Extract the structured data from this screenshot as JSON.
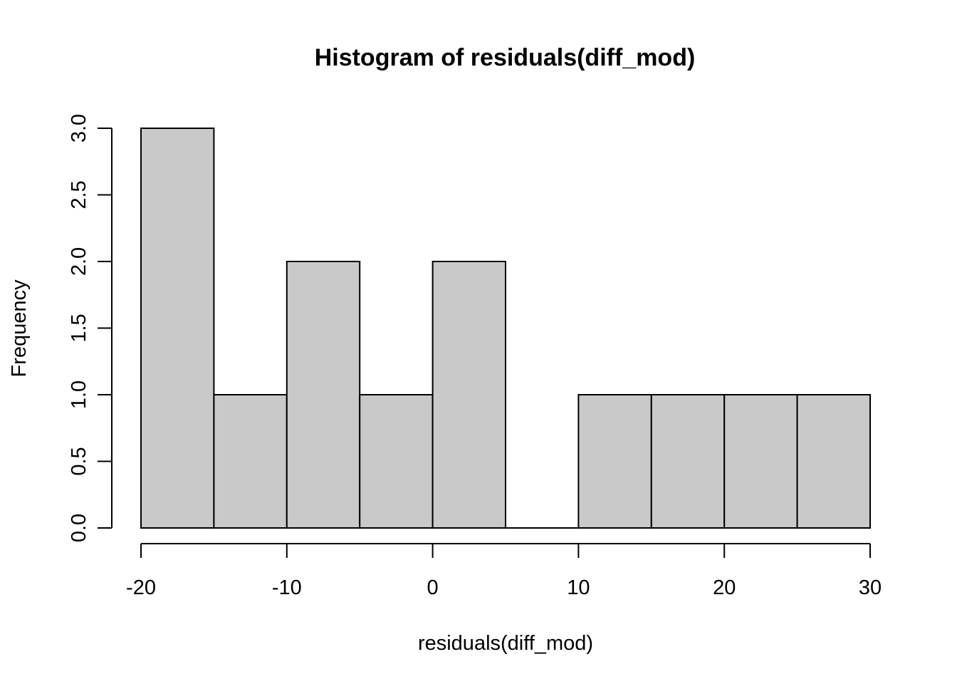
{
  "chart_data": {
    "type": "bar",
    "subtype": "histogram",
    "title": "Histogram of residuals(diff_mod)",
    "xlabel": "residuals(diff_mod)",
    "ylabel": "Frequency",
    "bins": [
      {
        "from": -20,
        "to": -15,
        "count": 3
      },
      {
        "from": -15,
        "to": -10,
        "count": 1
      },
      {
        "from": -10,
        "to": -5,
        "count": 2
      },
      {
        "from": -5,
        "to": 0,
        "count": 1
      },
      {
        "from": 0,
        "to": 5,
        "count": 2
      },
      {
        "from": 5,
        "to": 10,
        "count": 0
      },
      {
        "from": 10,
        "to": 15,
        "count": 1
      },
      {
        "from": 15,
        "to": 20,
        "count": 1
      },
      {
        "from": 20,
        "to": 25,
        "count": 1
      },
      {
        "from": 25,
        "to": 30,
        "count": 1
      }
    ],
    "xlim": [
      -20,
      30
    ],
    "ylim": [
      0,
      3
    ],
    "x_ticks": [
      "-20",
      "-10",
      "0",
      "10",
      "20",
      "30"
    ],
    "y_ticks": [
      "0.0",
      "0.5",
      "1.0",
      "1.5",
      "2.0",
      "2.5",
      "3.0"
    ],
    "bar_color": "#c9c9c9",
    "edge_color": "#000000",
    "grid": false,
    "legend": "none"
  }
}
